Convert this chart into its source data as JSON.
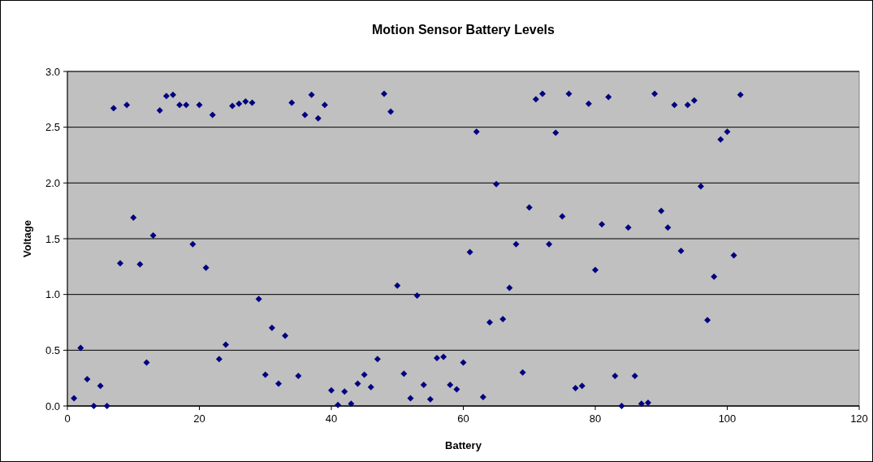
{
  "chart_data": {
    "type": "scatter",
    "title": "Motion Sensor Battery Levels",
    "xlabel": "Battery",
    "ylabel": "Voltage",
    "x": [
      1,
      2,
      3,
      4,
      5,
      6,
      7,
      8,
      9,
      10,
      11,
      12,
      13,
      14,
      15,
      16,
      17,
      18,
      19,
      20,
      21,
      22,
      23,
      24,
      25,
      26,
      27,
      28,
      29,
      30,
      31,
      32,
      33,
      34,
      35,
      36,
      37,
      38,
      39,
      40,
      41,
      42,
      43,
      44,
      45,
      46,
      47,
      48,
      49,
      50,
      51,
      52,
      53,
      54,
      55,
      56,
      57,
      58,
      59,
      60,
      61,
      62,
      63,
      64,
      65,
      66,
      67,
      68,
      69,
      70,
      71,
      72,
      73,
      74,
      75,
      76,
      77,
      78,
      79,
      80,
      81,
      82,
      83,
      84,
      85,
      86,
      87,
      88,
      89,
      90,
      91,
      92,
      93,
      94,
      95,
      96,
      97,
      98,
      99,
      100,
      101,
      102
    ],
    "series": [
      {
        "color": "#000080",
        "values": [
          0.07,
          0.52,
          0.24,
          0.0,
          0.18,
          0.0,
          2.67,
          1.28,
          2.7,
          1.69,
          1.27,
          0.39,
          1.53,
          2.65,
          2.78,
          2.79,
          2.7,
          2.7,
          1.45,
          2.7,
          1.24,
          2.61,
          0.42,
          0.55,
          2.69,
          2.71,
          2.73,
          2.72,
          0.96,
          0.28,
          0.7,
          0.2,
          0.63,
          2.72,
          0.27,
          2.61,
          2.79,
          2.58,
          2.7,
          0.14,
          0.01,
          0.13,
          0.02,
          0.2,
          0.28,
          0.17,
          0.42,
          2.8,
          2.64,
          1.08,
          0.29,
          0.07,
          0.99,
          0.19,
          0.06,
          0.43,
          0.44,
          0.19,
          0.15,
          0.39,
          1.38,
          2.46,
          0.08,
          0.75,
          1.99,
          0.78,
          1.06,
          1.45,
          0.3,
          1.78,
          2.75,
          2.8,
          1.45,
          2.45,
          1.7,
          2.8,
          0.16,
          0.18,
          2.71,
          1.22,
          1.63,
          2.77,
          0.27,
          0.0,
          1.6,
          0.27,
          0.02,
          0.03,
          2.8,
          1.75,
          1.6,
          2.7,
          1.39,
          2.7,
          2.74,
          1.97,
          0.77,
          1.16,
          2.39,
          2.46,
          1.35,
          2.79
        ]
      }
    ],
    "xlim": [
      0,
      120
    ],
    "xticks": [
      0,
      20,
      40,
      60,
      80,
      100,
      120
    ],
    "ylim": [
      0,
      3
    ],
    "yticks": [
      {
        "value": 0,
        "label": "0.0"
      },
      0.5,
      {
        "value": 1,
        "label": "1.0"
      },
      1.5,
      {
        "value": 2,
        "label": "2.0"
      },
      2.5,
      {
        "value": 3,
        "label": "3.0"
      }
    ],
    "grid": "y",
    "marker": "diamond"
  }
}
